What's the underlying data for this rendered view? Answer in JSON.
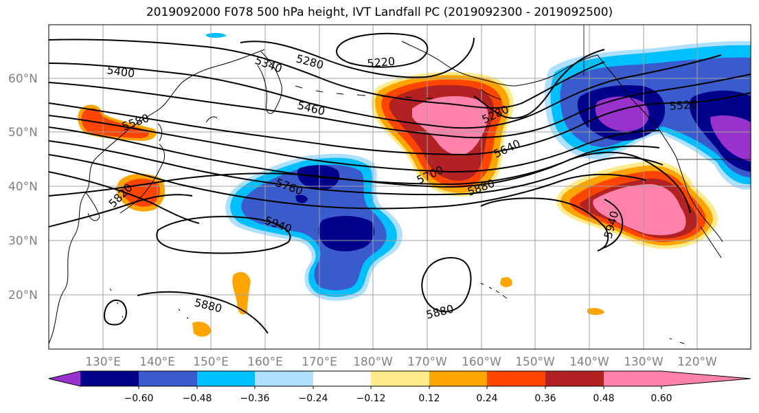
{
  "title": "2019092000 F078 500 hPa height, IVT Landfall PC (2019092300 - 2019092500)",
  "map": {
    "lat_labels": [
      "60°N",
      "50°N",
      "40°N",
      "30°N",
      "20°N"
    ],
    "lon_labels": [
      "130°E",
      "140°E",
      "150°E",
      "160°E",
      "170°E",
      "180°W",
      "170°W",
      "160°W",
      "150°W",
      "140°W",
      "130°W",
      "120°W"
    ],
    "contour_labels": [
      "5400",
      "5340",
      "5280",
      "5220",
      "5580",
      "5460",
      "5280",
      "5520",
      "5640",
      "5700",
      "5760",
      "5820",
      "5880",
      "5940",
      "5940",
      "5880",
      "5880"
    ]
  },
  "colorbar": {
    "colors": [
      "#9932CC",
      "#00008B",
      "#3A5BCB",
      "#00BFFF",
      "#B0E0FF",
      "#FFFFFF",
      "#FFEB8C",
      "#FFA500",
      "#FF4500",
      "#B22222",
      "#FF82AB",
      "#FF82AB"
    ],
    "tick_labels": [
      "−0.60",
      "−0.48",
      "−0.36",
      "−0.24",
      "−0.12",
      "0.12",
      "0.24",
      "0.36",
      "0.48",
      "0.60"
    ]
  }
}
